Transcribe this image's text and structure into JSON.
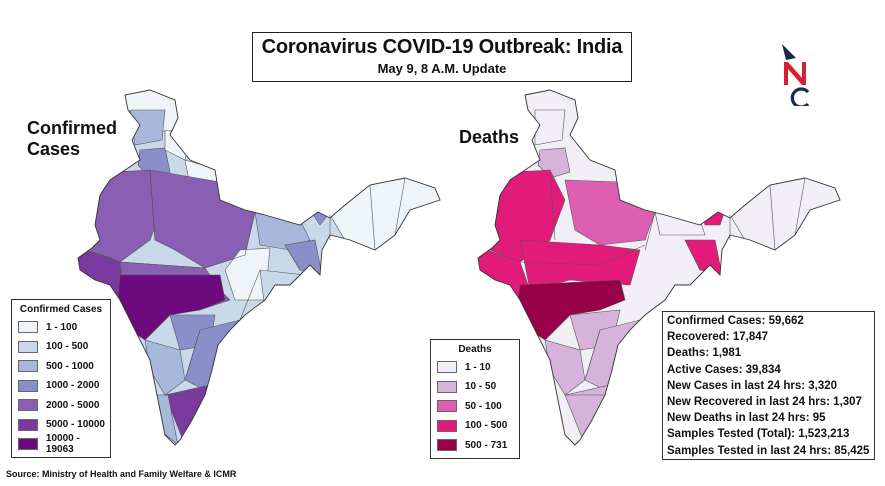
{
  "title": "Coronavirus COVID-19 Outbreak: India",
  "subtitle": "May 9, 8 A.M. Update",
  "logo": {
    "letters": "NC",
    "colors": {
      "accent": "#1a2a4a",
      "red": "#d62030"
    }
  },
  "maps": {
    "confirmed": {
      "heading": "Confirmed Cases",
      "legend": {
        "title": "Confirmed Cases",
        "items": [
          {
            "label": "1 - 100",
            "color": "#eef4f8"
          },
          {
            "label": "100 - 500",
            "color": "#c9d9ea"
          },
          {
            "label": "500 - 1000",
            "color": "#a8b7dc"
          },
          {
            "label": "1000 - 2000",
            "color": "#8a8fc9"
          },
          {
            "label": "2000 - 5000",
            "color": "#8a5eb3"
          },
          {
            "label": "5000 - 10000",
            "color": "#7a3aa0"
          },
          {
            "label": "10000 - 19063",
            "color": "#6d0a7e"
          }
        ]
      }
    },
    "deaths": {
      "heading": "Deaths",
      "legend": {
        "title": "Deaths",
        "items": [
          {
            "label": "1 - 10",
            "color": "#f1eef6"
          },
          {
            "label": "10 - 50",
            "color": "#d5b3da"
          },
          {
            "label": "50 - 100",
            "color": "#de5fb1"
          },
          {
            "label": "100 - 500",
            "color": "#e21b7a"
          },
          {
            "label": "500 - 731",
            "color": "#98004a"
          }
        ]
      }
    }
  },
  "stats": [
    "Confirmed Cases: 59,662",
    "Recovered: 17,847",
    "Deaths: 1,981",
    "Active Cases:  39,834",
    "New Cases in last 24 hrs: 3,320",
    "New Recovered in last 24 hrs: 1,307",
    "New Deaths in last 24 hrs: 95",
    "Samples Tested (Total): 1,523,213",
    "Samples Tested in last 24 hrs: 85,425"
  ],
  "source": "Source: Ministry of Health and Family Welfare & ICMR"
}
